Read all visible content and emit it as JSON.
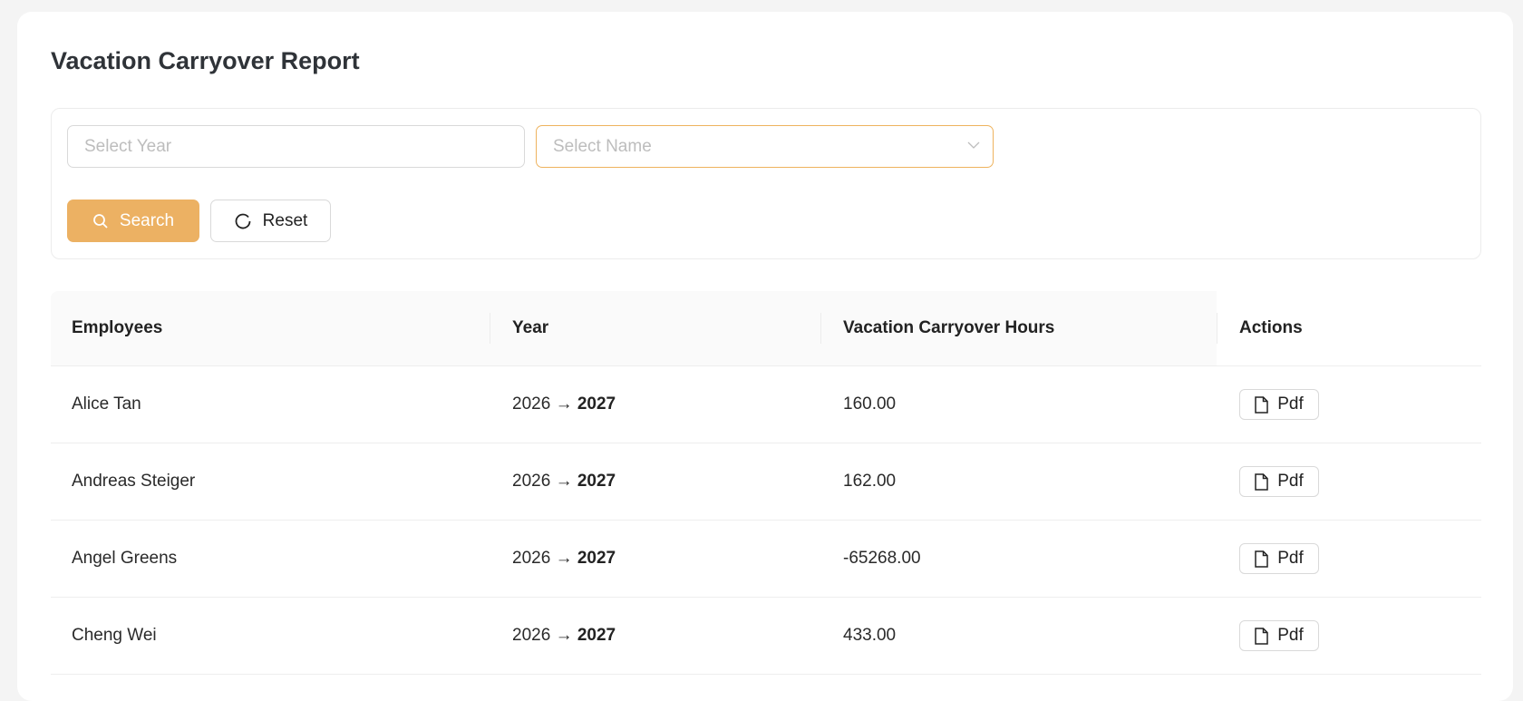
{
  "page": {
    "title": "Vacation Carryover Report"
  },
  "filters": {
    "year_placeholder": "Select Year",
    "name_placeholder": "Select Name",
    "search_label": "Search",
    "reset_label": "Reset"
  },
  "colors": {
    "accent": "#ecb163",
    "focus_border": "#eeb35e"
  },
  "table": {
    "columns": [
      "Employees",
      "Year",
      "Vacation Carryover Hours",
      "Actions"
    ],
    "rows": [
      {
        "employee": "Alice Tan",
        "year_from": "2026",
        "arrow": "→",
        "year_to": "2027",
        "hours": "160.00",
        "action": "Pdf"
      },
      {
        "employee": "Andreas Steiger",
        "year_from": "2026",
        "arrow": "→",
        "year_to": "2027",
        "hours": "162.00",
        "action": "Pdf"
      },
      {
        "employee": "Angel Greens",
        "year_from": "2026",
        "arrow": "→",
        "year_to": "2027",
        "hours": "-65268.00",
        "action": "Pdf"
      },
      {
        "employee": "Cheng Wei",
        "year_from": "2026",
        "arrow": "→",
        "year_to": "2027",
        "hours": "433.00",
        "action": "Pdf"
      }
    ]
  }
}
